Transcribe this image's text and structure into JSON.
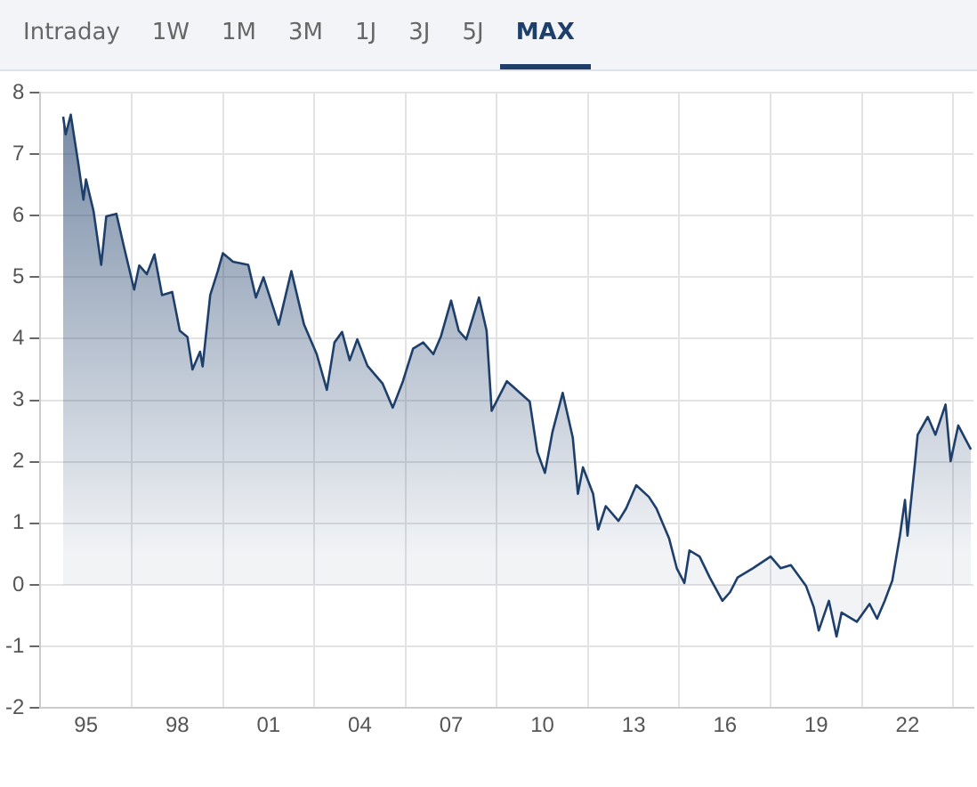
{
  "chart_data": {
    "type": "area",
    "annotations": [
      "Intraday",
      "1W",
      "1M",
      "3M",
      "1J",
      "3J",
      "5J",
      "MAX"
    ],
    "x": [
      "1994-10",
      "1994-11",
      "1995-01",
      "1995-04",
      "1995-06",
      "1995-07",
      "1995-10",
      "1996-01",
      "1996-03",
      "1996-07",
      "1996-10",
      "1997-02",
      "1997-04",
      "1997-07",
      "1997-10",
      "1998-01",
      "1998-05",
      "1998-08",
      "1998-11",
      "1999-01",
      "1999-04",
      "1999-05",
      "1999-08",
      "1999-11",
      "2000-01",
      "2000-05",
      "2000-11",
      "2001-02",
      "2001-05",
      "2001-11",
      "2002-04",
      "2002-09",
      "2003-02",
      "2003-06",
      "2003-09",
      "2003-12",
      "2004-03",
      "2004-06",
      "2004-10",
      "2005-04",
      "2005-08",
      "2005-12",
      "2006-04",
      "2006-08",
      "2006-12",
      "2007-03",
      "2007-07",
      "2007-10",
      "2008-01",
      "2008-06",
      "2008-09",
      "2008-11",
      "2009-05",
      "2010-02",
      "2010-05",
      "2010-08",
      "2010-11",
      "2011-03",
      "2011-07",
      "2011-09",
      "2011-11",
      "2012-03",
      "2012-05",
      "2012-08",
      "2013-01",
      "2013-04",
      "2013-08",
      "2014-01",
      "2014-04",
      "2014-09",
      "2014-12",
      "2015-03",
      "2015-05",
      "2015-09",
      "2016-01",
      "2016-06",
      "2016-09",
      "2016-12",
      "2017-06",
      "2018-01",
      "2018-05",
      "2018-09",
      "2019-03",
      "2019-06",
      "2019-08",
      "2019-12",
      "2020-03",
      "2020-05",
      "2020-11",
      "2021-04",
      "2021-07",
      "2021-10",
      "2022-01",
      "2022-04",
      "2022-06",
      "2022-07",
      "2022-10",
      "2022-11",
      "2023-03",
      "2023-06",
      "2023-10",
      "2023-12",
      "2024-03",
      "2024-08"
    ],
    "values": [
      7.61,
      7.32,
      7.64,
      6.84,
      6.26,
      6.59,
      6.07,
      5.2,
      5.99,
      6.03,
      5.49,
      4.8,
      5.19,
      5.05,
      5.37,
      4.71,
      4.76,
      4.13,
      4.03,
      3.5,
      3.79,
      3.55,
      4.71,
      5.1,
      5.39,
      5.25,
      5.2,
      4.67,
      5.0,
      4.23,
      5.1,
      4.23,
      3.75,
      3.17,
      3.94,
      4.11,
      3.65,
      3.99,
      3.56,
      3.27,
      2.88,
      3.31,
      3.84,
      3.94,
      3.75,
      4.04,
      4.62,
      4.13,
      3.99,
      4.67,
      4.13,
      2.83,
      3.31,
      2.98,
      2.16,
      1.82,
      2.49,
      3.12,
      2.39,
      1.48,
      1.91,
      1.48,
      0.9,
      1.28,
      1.04,
      1.24,
      1.62,
      1.43,
      1.24,
      0.75,
      0.27,
      0.03,
      0.56,
      0.46,
      0.12,
      -0.26,
      -0.12,
      0.12,
      0.27,
      0.46,
      0.27,
      0.32,
      -0.02,
      -0.36,
      -0.74,
      -0.26,
      -0.84,
      -0.45,
      -0.6,
      -0.31,
      -0.55,
      -0.26,
      0.07,
      0.8,
      1.38,
      0.8,
      2.01,
      2.44,
      2.73,
      2.44,
      2.93,
      2.01,
      2.59,
      2.2
    ],
    "color": "#1f3f6b",
    "xlim": [
      "1994-01",
      "2024-09"
    ],
    "xticks": [
      {
        "value": "1995-07",
        "label": "95"
      },
      {
        "value": "1997-01",
        "label": null
      },
      {
        "value": "1998-07",
        "label": "98"
      },
      {
        "value": "2000-01",
        "label": null
      },
      {
        "value": "2001-07",
        "label": "01"
      },
      {
        "value": "2003-01",
        "label": null
      },
      {
        "value": "2004-07",
        "label": "04"
      },
      {
        "value": "2006-01",
        "label": null
      },
      {
        "value": "2007-07",
        "label": "07"
      },
      {
        "value": "2009-01",
        "label": null
      },
      {
        "value": "2010-07",
        "label": "10"
      },
      {
        "value": "2012-01",
        "label": null
      },
      {
        "value": "2013-07",
        "label": "13"
      },
      {
        "value": "2015-01",
        "label": null
      },
      {
        "value": "2016-07",
        "label": "16"
      },
      {
        "value": "2018-01",
        "label": null
      },
      {
        "value": "2019-07",
        "label": "19"
      },
      {
        "value": "2021-01",
        "label": null
      },
      {
        "value": "2022-07",
        "label": "22"
      },
      {
        "value": "2024-01",
        "label": null
      }
    ],
    "ylim": [
      -2,
      8
    ],
    "yticks": [
      -2,
      -1,
      0,
      1,
      2,
      3,
      4,
      5,
      6,
      7,
      8
    ],
    "grid": true,
    "legend": false,
    "marker": "none",
    "line_style": "solid"
  }
}
